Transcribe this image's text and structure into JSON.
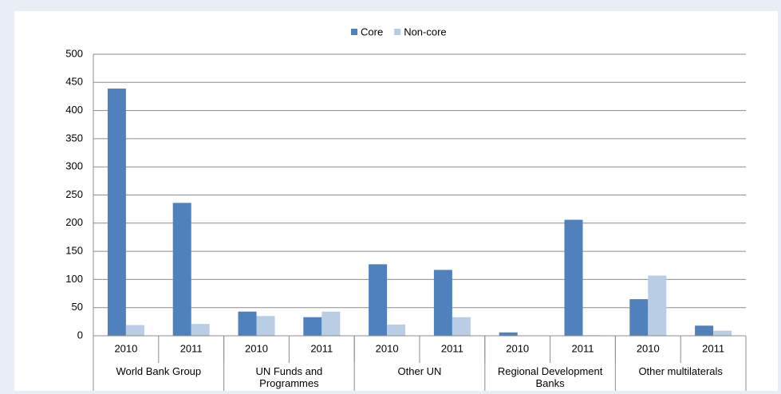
{
  "chart_data": {
    "type": "bar",
    "categories": [
      "2010",
      "2011",
      "2010",
      "2011",
      "2010",
      "2011",
      "2010",
      "2011",
      "2010",
      "2011"
    ],
    "groups": [
      "World Bank Group",
      "UN Funds and Programmes",
      "Other UN",
      "Regional Development Banks",
      "Other multilaterals"
    ],
    "series": [
      {
        "name": "Core",
        "color": "#4f81bd",
        "values": [
          439,
          236,
          43,
          33,
          127,
          117,
          6,
          206,
          65,
          18
        ]
      },
      {
        "name": "Non-core",
        "color": "#b9cde5",
        "values": [
          19,
          21,
          35,
          43,
          20,
          33,
          0,
          1,
          107,
          9
        ]
      }
    ],
    "ylim": [
      0,
      500
    ],
    "yticks": [
      0,
      50,
      100,
      150,
      200,
      250,
      300,
      350,
      400,
      450,
      500
    ],
    "grid": true,
    "legend": "top"
  }
}
